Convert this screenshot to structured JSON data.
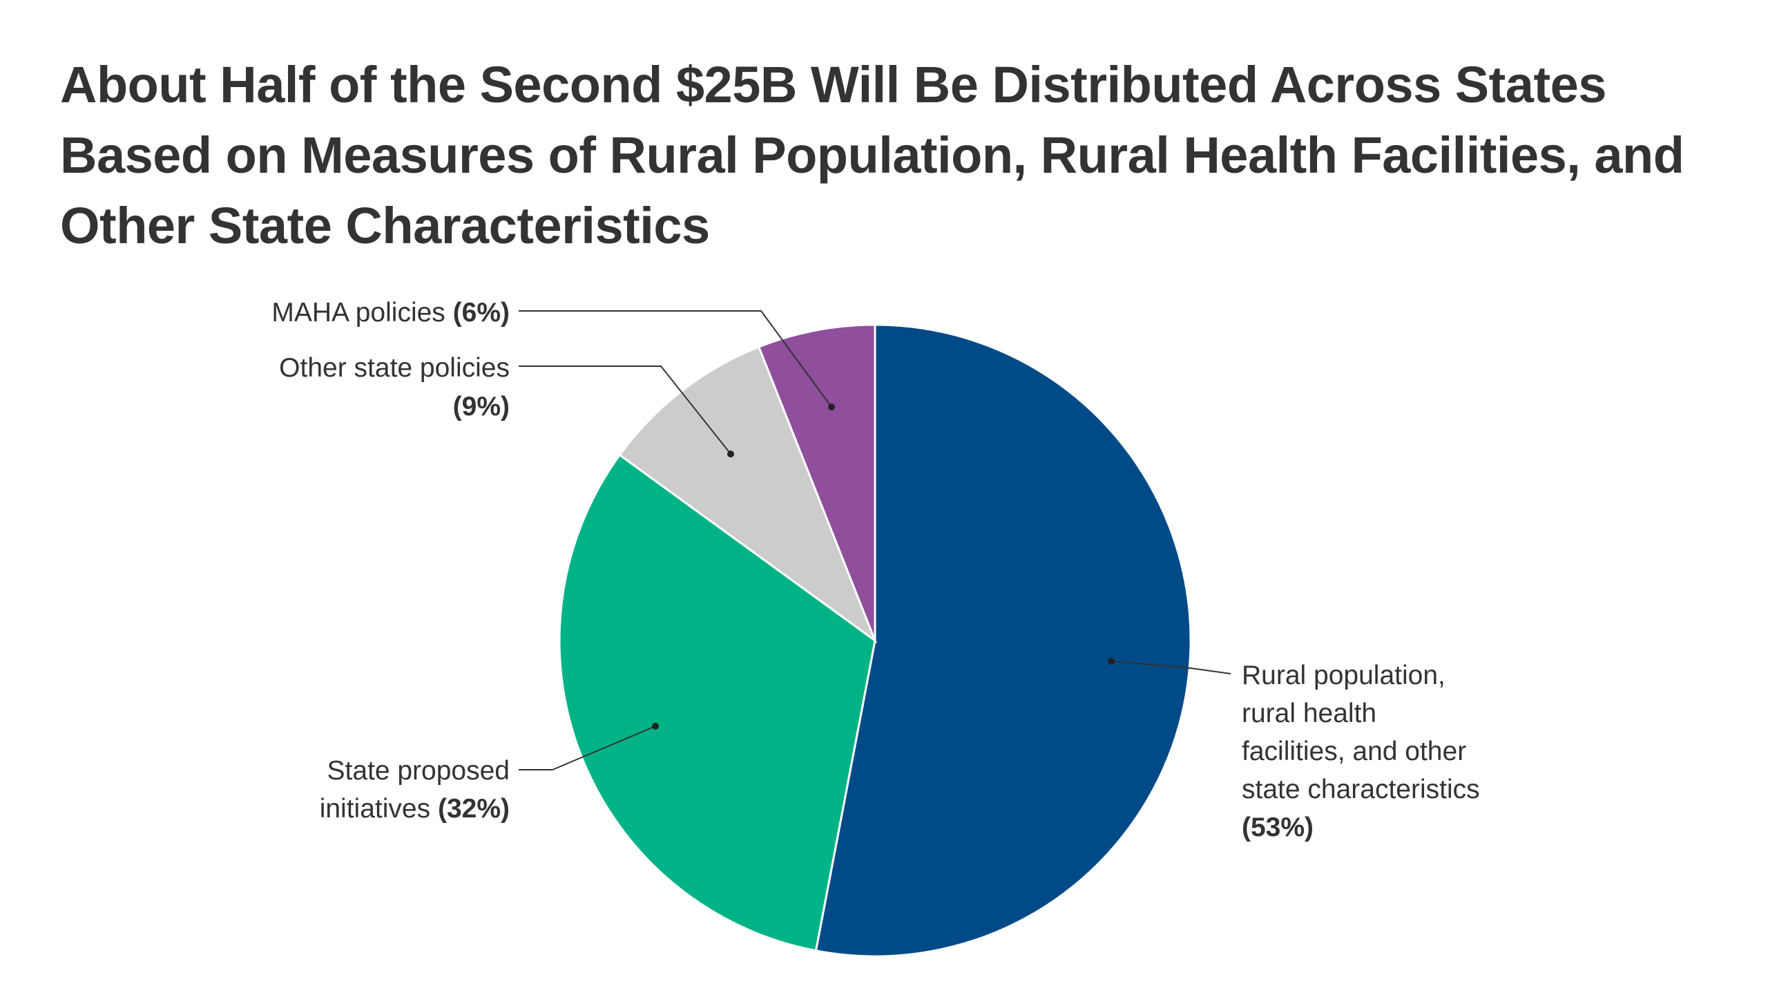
{
  "chart_data": {
    "type": "pie",
    "title": "About Half of the Second $25B Will Be Distributed Across States Based on Measures of Rural Population, Rural Health Facilities, and Other State Characteristics",
    "start": "top, clockwise",
    "slices": [
      {
        "name": "Rural population, rural health facilities, and other state characteristics",
        "value": 53,
        "pct_label": "(53%)",
        "color": "#004b87",
        "label_lines": [
          "Rural population,",
          "rural health",
          "facilities, and other",
          "state characteristics"
        ]
      },
      {
        "name": "State proposed initiatives",
        "value": 32,
        "pct_label": "(32%)",
        "color": "#00b386",
        "label_lines": [
          "State proposed",
          "initiatives"
        ]
      },
      {
        "name": "Other state policies",
        "value": 9,
        "pct_label": "(9%)",
        "color": "#cccccc",
        "label_lines": [
          "Other state policies"
        ]
      },
      {
        "name": "MAHA policies",
        "value": 6,
        "pct_label": "(6%)",
        "color": "#8f4f9d",
        "label_lines": [
          "MAHA policies"
        ]
      }
    ]
  }
}
